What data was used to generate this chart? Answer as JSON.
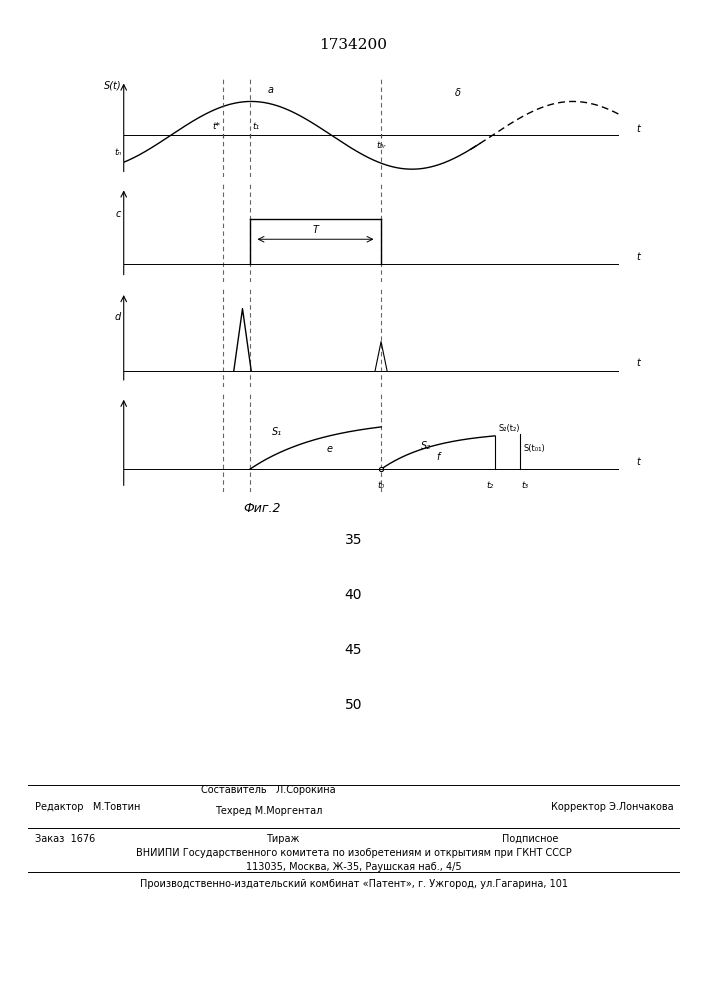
{
  "patent_number": "1734200",
  "fig_label": "Фиг.2",
  "bg_color": "#ffffff",
  "numbers_35_to_50": [
    "35",
    "40",
    "45",
    "50"
  ],
  "footer_line1_left": "Редактор   М.Товтин",
  "footer_line1_center_top": "Составитель   Л.Сорокина",
  "footer_line1_center_bot": "Техред М.Моргентал",
  "footer_line1_right": "Корректор Э.Лончакова",
  "footer_zak": "Заказ  1676",
  "footer_tir": "Тираж",
  "footer_pod": "Подписное",
  "footer_line3": "ВНИИПИ Государственного комитета по изобретениям и открытиям при ГКНТ СССР",
  "footer_line4": "113035, Москва, Ж-35, Раушская наб., 4/5",
  "footer_line5": "Производственно-издательский комбинат «Патент», г. Ужгород, ул.Гагарина, 101"
}
